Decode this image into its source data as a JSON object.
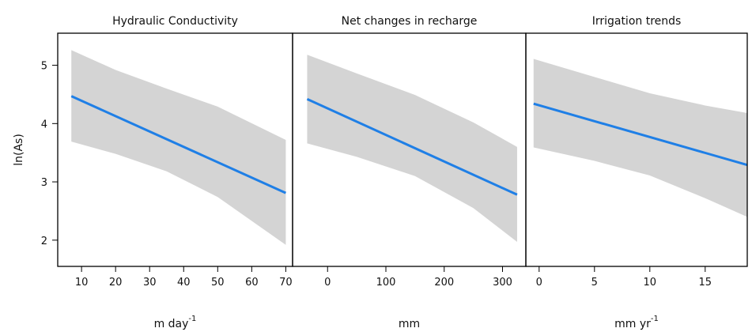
{
  "chart_data": {
    "type": "line",
    "ylabel": "ln(As)",
    "ylim": [
      1.55,
      5.55
    ],
    "yticks": [
      2,
      3,
      4,
      5
    ],
    "colors": {
      "line": "#1f7fe6",
      "band": "#d4d4d4",
      "frame": "#000000"
    },
    "panels": [
      {
        "title": "Hydraulic Conductivity",
        "xunit": "m day",
        "xunit_sup": "-1",
        "xlim": [
          3,
          72
        ],
        "xticks": [
          10,
          20,
          30,
          40,
          50,
          60,
          70
        ],
        "line": {
          "x": [
            7,
            70
          ],
          "y": [
            4.47,
            2.81
          ]
        },
        "band": {
          "x": [
            7,
            20,
            35,
            50,
            70
          ],
          "upper": [
            5.26,
            4.92,
            4.6,
            4.29,
            3.72
          ],
          "lower": [
            3.69,
            3.48,
            3.18,
            2.74,
            1.92
          ]
        }
      },
      {
        "title": "Net changes in recharge",
        "xunit": "mm",
        "xunit_sup": "",
        "xlim": [
          -60,
          340
        ],
        "xticks": [
          0,
          100,
          200,
          300
        ],
        "line": {
          "x": [
            -35,
            325
          ],
          "y": [
            4.42,
            2.78
          ]
        },
        "band": {
          "x": [
            -35,
            50,
            150,
            250,
            325
          ],
          "upper": [
            5.18,
            4.86,
            4.49,
            4.02,
            3.6
          ],
          "lower": [
            3.66,
            3.43,
            3.1,
            2.55,
            1.97
          ]
        }
      },
      {
        "title": "Irrigation trends",
        "xunit": "mm yr",
        "xunit_sup": "-1",
        "xlim": [
          -1.2,
          18.8
        ],
        "xticks": [
          0,
          5,
          10,
          15
        ],
        "line": {
          "x": [
            -0.5,
            18.8
          ],
          "y": [
            4.34,
            3.29
          ]
        },
        "band": {
          "x": [
            -0.5,
            5,
            10,
            15,
            18.8
          ],
          "upper": [
            5.11,
            4.8,
            4.52,
            4.31,
            4.18
          ],
          "lower": [
            3.59,
            3.36,
            3.11,
            2.72,
            2.4
          ]
        }
      }
    ]
  }
}
